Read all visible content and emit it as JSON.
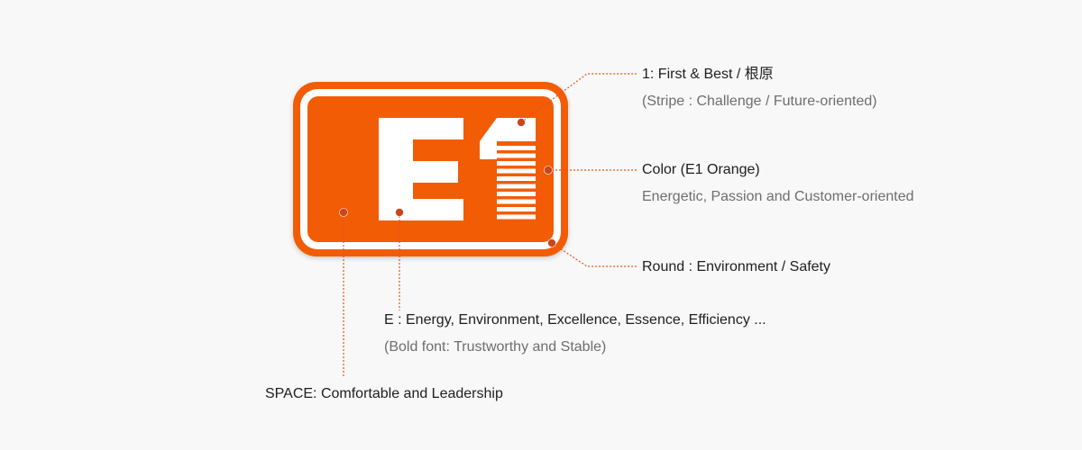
{
  "colors": {
    "brand_orange": "#f25c05",
    "dot": "#c9471f",
    "connector": "#e0541c",
    "title_text": "#1e1e1e",
    "sub_text": "#6e6e6e",
    "background": "#f8f8f8"
  },
  "logo": {
    "text": "E1"
  },
  "annotations": {
    "first_best": {
      "title": "1: First & Best / 根原",
      "subtitle": "(Stripe : Challenge / Future-oriented)"
    },
    "color": {
      "title": "Color (E1 Orange)",
      "subtitle": "Energetic, Passion and Customer-oriented"
    },
    "round": {
      "title": "Round : Environment / Safety"
    },
    "energy": {
      "title": "E : Energy, Environment, Excellence, Essence, Efficiency ...",
      "subtitle": "(Bold font: Trustworthy and Stable)"
    },
    "space": {
      "title": "SPACE: Comfortable and Leadership"
    }
  }
}
